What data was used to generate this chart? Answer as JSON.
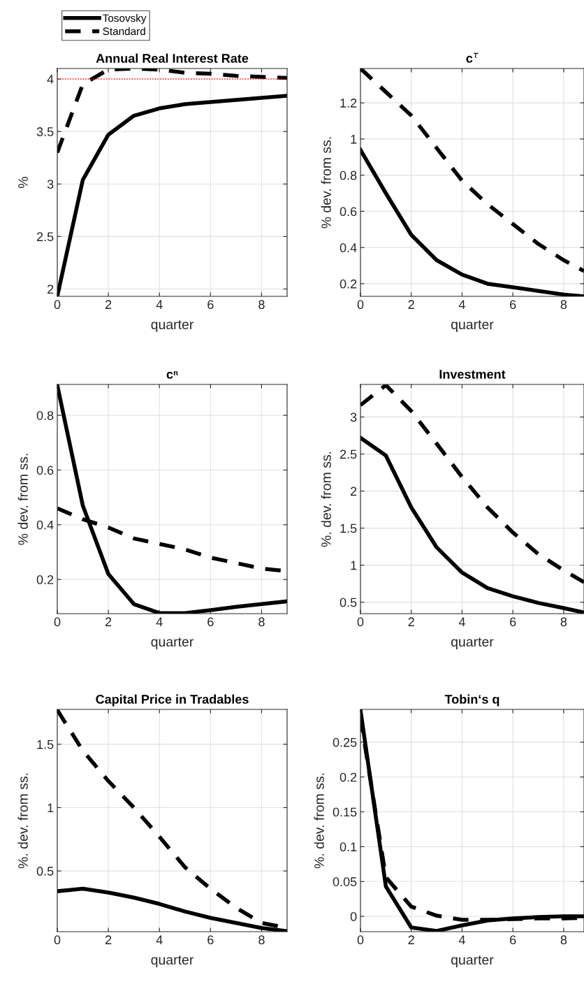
{
  "chart_data": [
    {
      "type": "line",
      "title": "Annual Real Interest Rate",
      "xlabel": "quarter",
      "ylabel": "%",
      "x": [
        0,
        1,
        2,
        3,
        4,
        5,
        6,
        7,
        8,
        9
      ],
      "xlim": [
        0,
        9
      ],
      "xticks": [
        0,
        2,
        4,
        6,
        8
      ],
      "ylim": [
        1.93,
        4.1
      ],
      "yticks": [
        2,
        2.5,
        3,
        3.5,
        4
      ],
      "grid": true,
      "legend": "top left",
      "ref_lines": [
        {
          "axis": "y",
          "value": 4,
          "color": "#ff0000",
          "line_style": "dotted"
        }
      ],
      "series": [
        {
          "name": "Tosovsky",
          "color": "#000000",
          "line_style": "solid",
          "values": [
            1.93,
            3.04,
            3.47,
            3.65,
            3.72,
            3.76,
            3.78,
            3.8,
            3.82,
            3.84
          ]
        },
        {
          "name": "Standard",
          "color": "#000000",
          "line_style": "dashed",
          "values": [
            3.3,
            3.95,
            4.09,
            4.1,
            4.09,
            4.06,
            4.05,
            4.03,
            4.02,
            4.01
          ]
        }
      ]
    },
    {
      "type": "line",
      "title": "c$^{τ}$",
      "xlabel": "quarter",
      "ylabel": "% dev. from ss.",
      "x": [
        0,
        1,
        2,
        3,
        4,
        5,
        6,
        7,
        8,
        8.8
      ],
      "xlim": [
        0,
        8.8
      ],
      "xticks": [
        0,
        2,
        4,
        6,
        8
      ],
      "ylim": [
        0.13,
        1.39
      ],
      "yticks": [
        0.2,
        0.4,
        0.6,
        0.8,
        1,
        1.2
      ],
      "grid": true,
      "series": [
        {
          "color": "#000000",
          "line_style": "solid",
          "values": [
            0.94,
            0.7,
            0.47,
            0.33,
            0.25,
            0.2,
            0.18,
            0.16,
            0.14,
            0.13
          ]
        },
        {
          "color": "#000000",
          "line_style": "dashed",
          "values": [
            1.39,
            1.26,
            1.13,
            0.95,
            0.77,
            0.64,
            0.53,
            0.42,
            0.33,
            0.27
          ]
        }
      ]
    },
    {
      "type": "line",
      "title": "cⁿ",
      "xlabel": "quarter",
      "ylabel": "% dev. from ss.",
      "x": [
        0,
        1,
        2,
        3,
        4,
        5,
        6,
        7,
        8,
        9
      ],
      "xlim": [
        0,
        9
      ],
      "xticks": [
        0,
        2,
        4,
        6,
        8
      ],
      "ylim": [
        0.075,
        0.913
      ],
      "yticks": [
        0.2,
        0.4,
        0.6,
        0.8
      ],
      "grid": true,
      "series": [
        {
          "color": "#000000",
          "line_style": "solid",
          "values": [
            0.91,
            0.47,
            0.22,
            0.11,
            0.077,
            0.077,
            0.088,
            0.1,
            0.11,
            0.12
          ]
        },
        {
          "color": "#000000",
          "line_style": "dashed",
          "values": [
            0.46,
            0.42,
            0.39,
            0.35,
            0.33,
            0.31,
            0.28,
            0.26,
            0.24,
            0.23
          ]
        }
      ]
    },
    {
      "type": "line",
      "title": "Investment",
      "xlabel": "quarter",
      "ylabel": "%. dev. from ss.",
      "x": [
        0,
        1,
        2,
        3,
        4,
        5,
        6,
        7,
        8,
        8.8
      ],
      "xlim": [
        0,
        8.8
      ],
      "xticks": [
        0,
        2,
        4,
        6,
        8
      ],
      "ylim": [
        0.345,
        3.44
      ],
      "yticks": [
        0.5,
        1,
        1.5,
        2,
        2.5,
        3
      ],
      "grid": true,
      "series": [
        {
          "color": "#000000",
          "line_style": "solid",
          "values": [
            2.72,
            2.48,
            1.78,
            1.24,
            0.9,
            0.69,
            0.58,
            0.49,
            0.42,
            0.36
          ]
        },
        {
          "color": "#000000",
          "line_style": "dashed",
          "values": [
            3.16,
            3.43,
            3.08,
            2.64,
            2.19,
            1.78,
            1.44,
            1.15,
            0.93,
            0.77
          ]
        }
      ]
    },
    {
      "type": "line",
      "title": "Capital Price in Tradables",
      "xlabel": "quarter",
      "ylabel": "%. dev. from ss.",
      "x": [
        0,
        1,
        2,
        3,
        4,
        5,
        6,
        7,
        8,
        9
      ],
      "xlim": [
        0,
        9
      ],
      "xticks": [
        0,
        2,
        4,
        6,
        8
      ],
      "ylim": [
        0.021,
        1.775
      ],
      "yticks": [
        0.5,
        1,
        1.5
      ],
      "grid": true,
      "series": [
        {
          "color": "#000000",
          "line_style": "solid",
          "values": [
            0.34,
            0.36,
            0.33,
            0.29,
            0.24,
            0.18,
            0.13,
            0.09,
            0.05,
            0.025
          ]
        },
        {
          "color": "#000000",
          "line_style": "dashed",
          "values": [
            1.77,
            1.45,
            1.21,
            1.0,
            0.77,
            0.53,
            0.36,
            0.21,
            0.09,
            0.05
          ]
        }
      ]
    },
    {
      "type": "line",
      "title": "Tobin‘s q",
      "xlabel": "quarter",
      "ylabel": "%. dev. from ss.",
      "x": [
        0,
        1,
        2,
        3,
        4,
        5,
        6,
        7,
        8,
        8.8
      ],
      "xlim": [
        0,
        8.8
      ],
      "xticks": [
        0,
        2,
        4,
        6,
        8
      ],
      "ylim": [
        -0.022,
        0.297
      ],
      "yticks": [
        0,
        0.05,
        0.1,
        0.15,
        0.2,
        0.25
      ],
      "grid": true,
      "series": [
        {
          "color": "#000000",
          "line_style": "solid",
          "values": [
            0.296,
            0.043,
            -0.016,
            -0.021,
            -0.013,
            -0.006,
            -0.003,
            -0.001,
            0.0,
            0.0
          ]
        },
        {
          "color": "#000000",
          "line_style": "dashed",
          "values": [
            0.286,
            0.056,
            0.014,
            0.001,
            -0.005,
            -0.005,
            -0.004,
            -0.003,
            -0.003,
            -0.002
          ]
        }
      ]
    }
  ]
}
